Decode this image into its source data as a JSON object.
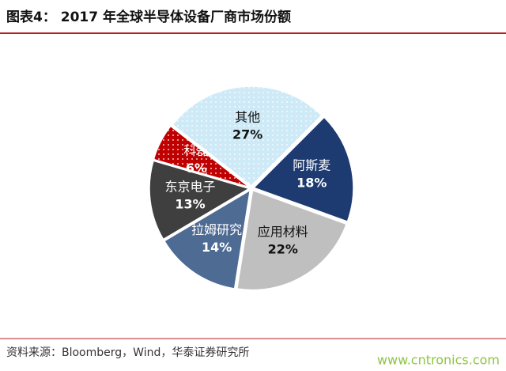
{
  "chart_data": {
    "type": "pie",
    "title": "图表4：  2017 年全球半导体设备厂商市场份额",
    "categories": [
      "阿斯麦",
      "应用材料",
      "拉姆研究",
      "东京电子",
      "科磊",
      "其他"
    ],
    "values": [
      18,
      22,
      14,
      13,
      6,
      27
    ],
    "value_labels": [
      "18%",
      "22%",
      "14%",
      "13%",
      "6%",
      "27%"
    ],
    "colors": [
      "#1d3b70",
      "#bfbfbf",
      "#4e6b94",
      "#3f3f3f",
      "#c00000",
      "#cfeaf7"
    ],
    "dotted": [
      false,
      false,
      false,
      false,
      true,
      true
    ],
    "start_angle": 45,
    "source": "资料来源：Bloomberg，Wind，华泰证券研究所",
    "watermark": "www.cntronics.com"
  }
}
